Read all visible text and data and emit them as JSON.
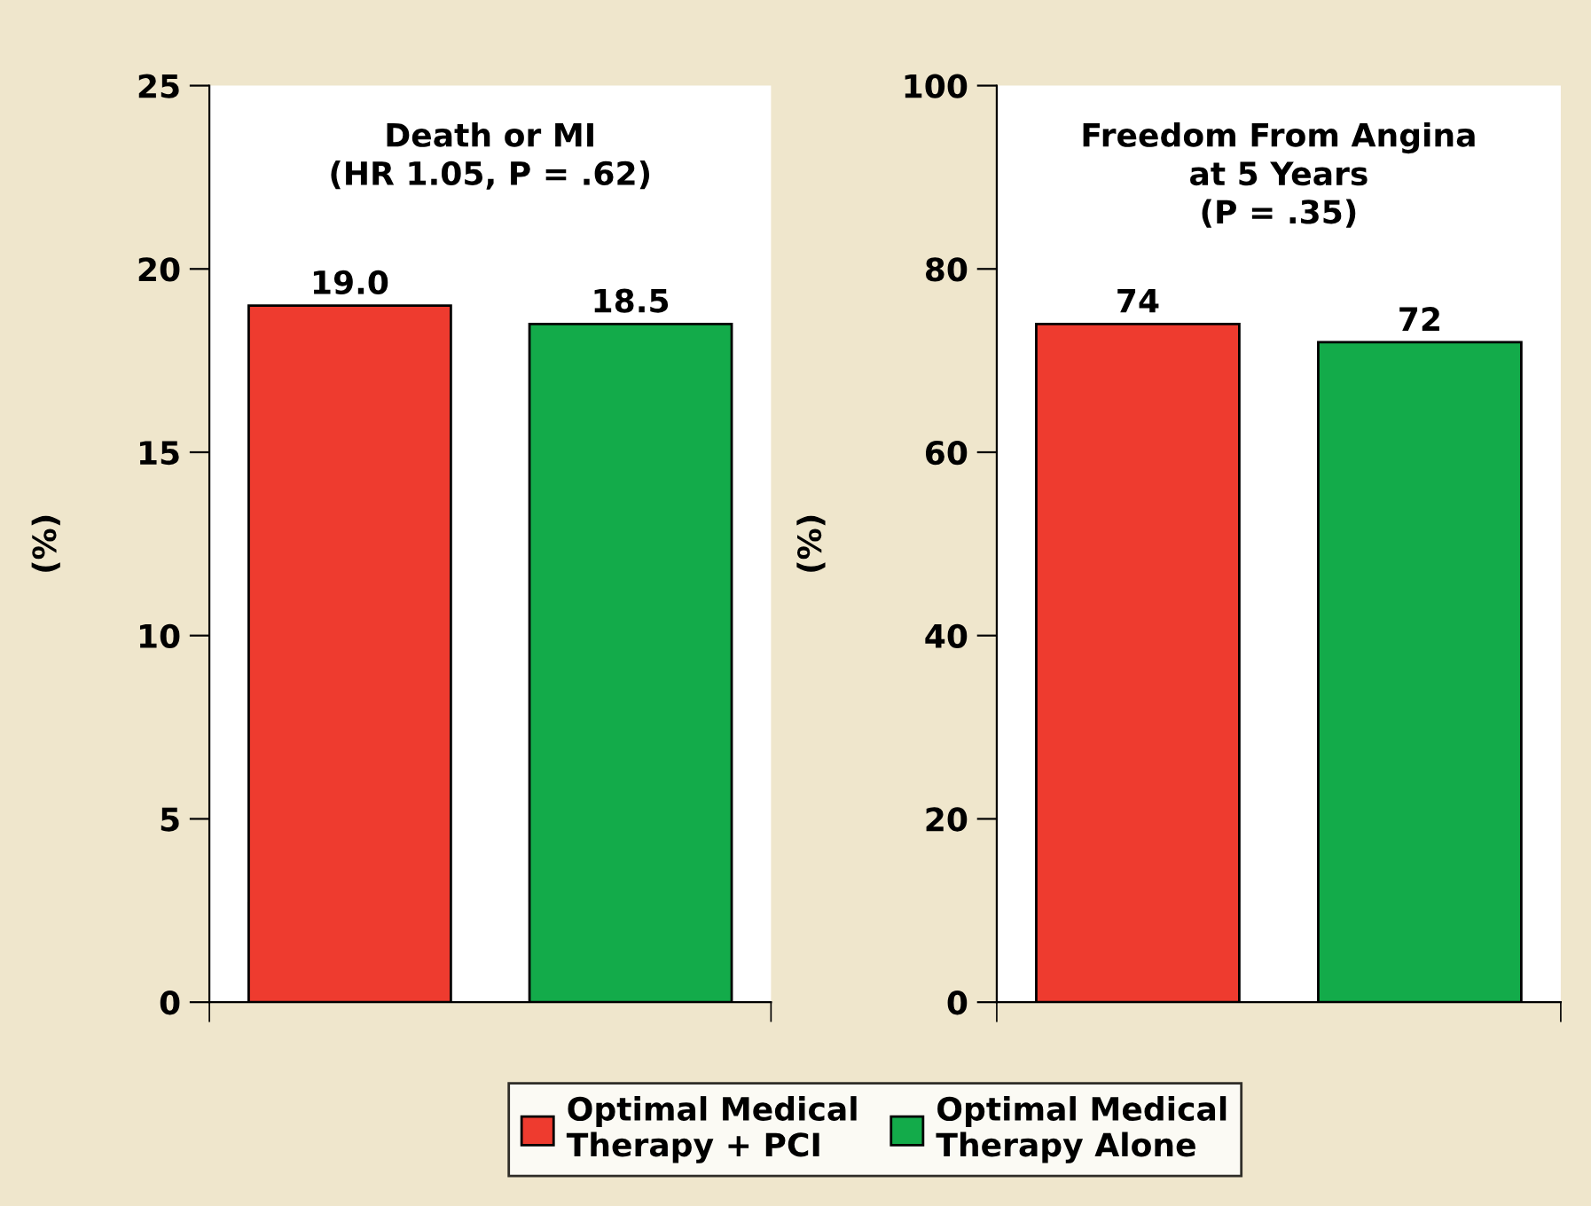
{
  "chart_data": [
    {
      "type": "bar",
      "title": "Death or MI\n(HR 1.05, P = .62)",
      "ylabel": "(%)",
      "categories": [
        null
      ],
      "series": [
        {
          "name": "Optimal Medical\nTherapy + PCI",
          "color": "#ee3b2f",
          "values": [
            19.0
          ],
          "value_labels": [
            "19.0"
          ]
        },
        {
          "name": "Optimal Medical\nTherapy Alone",
          "color": "#13ab4a",
          "values": [
            18.5
          ],
          "value_labels": [
            "18.5"
          ]
        }
      ],
      "ylim": [
        0,
        25
      ],
      "yticks": [
        0,
        5,
        10,
        15,
        20,
        25
      ],
      "grid": false,
      "legend": "bottom"
    },
    {
      "type": "bar",
      "title": "Freedom From Angina\nat 5 Years\n(P = .35)",
      "ylabel": "(%)",
      "categories": [
        null
      ],
      "series": [
        {
          "color": "#ee3b2f",
          "values": [
            74
          ],
          "value_labels": [
            "74"
          ]
        },
        {
          "color": "#13ab4a",
          "values": [
            72
          ],
          "value_labels": [
            "72"
          ]
        }
      ],
      "ylim": [
        0,
        100
      ],
      "yticks": [
        0,
        20,
        40,
        60,
        80,
        100
      ],
      "grid": false
    }
  ]
}
